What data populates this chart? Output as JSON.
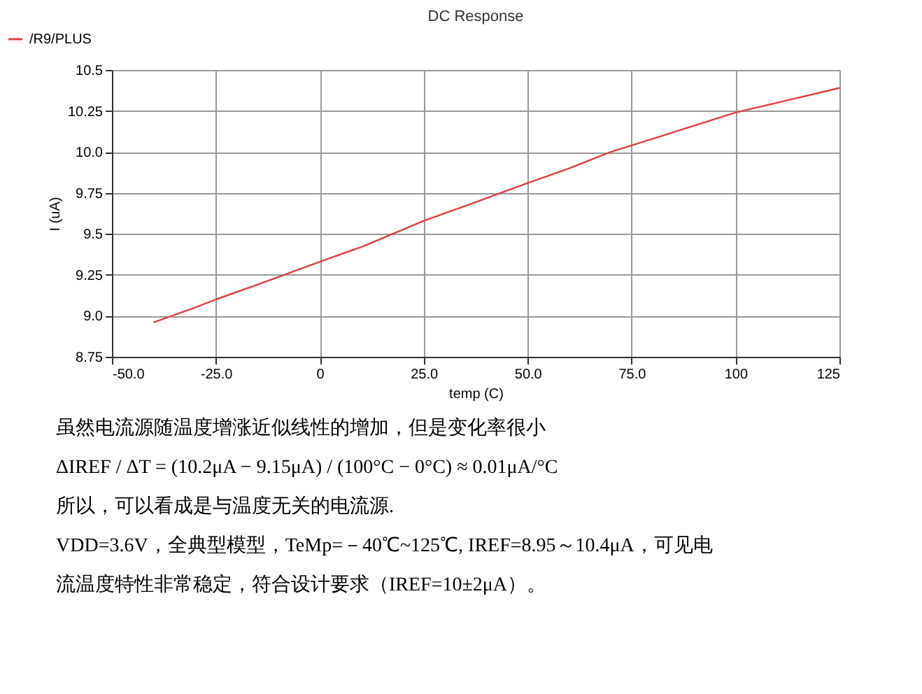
{
  "chart_data": {
    "type": "line",
    "title": "DC Response",
    "xlabel": "temp (C)",
    "ylabel": "I (uA)",
    "x": [
      -40,
      -30,
      -25,
      -15,
      0,
      10,
      25,
      35,
      50,
      60,
      70,
      75,
      85,
      100,
      110,
      125
    ],
    "series": [
      {
        "name": "/R9/PLUS",
        "color": "#e04040",
        "values": [
          8.96,
          9.05,
          9.1,
          9.19,
          9.33,
          9.42,
          9.58,
          9.67,
          9.81,
          9.9,
          10.0,
          10.04,
          10.12,
          10.24,
          10.3,
          10.39
        ]
      }
    ],
    "xlim": [
      -50,
      125
    ],
    "xticks": [
      {
        "value": -50,
        "label": "-50.0"
      },
      {
        "value": -25,
        "label": "-25.0"
      },
      0,
      {
        "value": 25,
        "label": "25.0"
      },
      {
        "value": 50,
        "label": "50.0"
      },
      {
        "value": 75,
        "label": "75.0"
      },
      100,
      125
    ],
    "ylim": [
      8.75,
      10.5
    ],
    "yticks": [
      8.75,
      {
        "value": 9,
        "label": "9.0"
      },
      9.25,
      9.5,
      9.75,
      {
        "value": 10,
        "label": "10.0"
      },
      10.25,
      10.5
    ],
    "grid": true,
    "legend": "top left",
    "marker": "none",
    "line_style": "solid",
    "annotations": [
      "虽然电流源随温度增涨近似线性的增加，但是变化率很小",
      "ΔIREF / ΔT = (10.2μA − 9.15μA) / (100°C − 0°C) ≈ 0.01μA/°C",
      "所以，可以看成是与温度无关的电流源.",
      "VDD=3.6V，全典型模型，TeMp=－40℃~125℃, IREF=8.95～10.4μA，可见电",
      "流温度特性非常稳定，符合设计要求（IREF=10±2μA）。"
    ]
  }
}
